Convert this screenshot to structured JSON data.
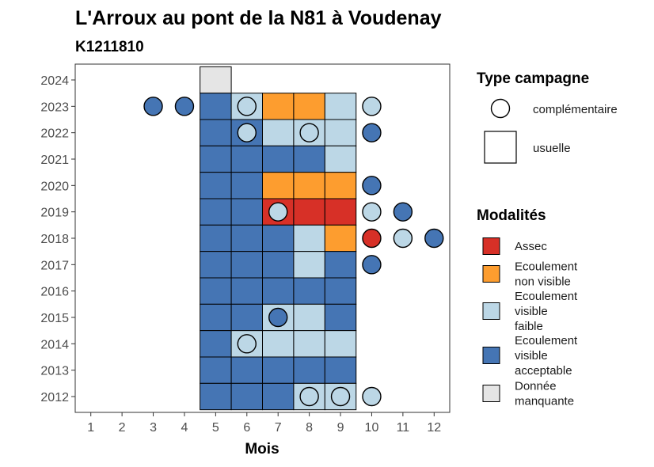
{
  "chart_data": {
    "type": "heatmap",
    "title": "L'Arroux au pont de la N81 à Voudenay",
    "subtitle": "K1211810",
    "xlabel": "Mois",
    "ylabel": "",
    "x_ticks": [
      "1",
      "2",
      "3",
      "4",
      "5",
      "6",
      "7",
      "8",
      "9",
      "10",
      "11",
      "12"
    ],
    "y_ticks": [
      "2012",
      "2013",
      "2014",
      "2015",
      "2016",
      "2017",
      "2018",
      "2019",
      "2020",
      "2021",
      "2022",
      "2023",
      "2024"
    ],
    "xlim": [
      0.5,
      12.5
    ],
    "ylim": [
      2011.4,
      2024.6
    ],
    "grid": false,
    "colors": {
      "Assec": "#d73027",
      "Ecoulement non visible": "#fd9d2f",
      "Ecoulement visible faible": "#bcd7e6",
      "Ecoulement visible acceptable": "#4575b4",
      "Donnée manquante": "#e5e5e5"
    },
    "legend_type": {
      "title": "Type campagne",
      "entries": [
        {
          "label": "complémentaire",
          "shape": "circle"
        },
        {
          "label": "usuelle",
          "shape": "square"
        }
      ]
    },
    "legend_modalite": {
      "title": "Modalités",
      "entries": [
        {
          "key": "Assec",
          "lines": [
            "Assec"
          ]
        },
        {
          "key": "Ecoulement non visible",
          "lines": [
            "Ecoulement",
            "non visible"
          ]
        },
        {
          "key": "Ecoulement visible faible",
          "lines": [
            "Ecoulement",
            "visible",
            "faible"
          ]
        },
        {
          "key": "Ecoulement visible acceptable",
          "lines": [
            "Ecoulement",
            "visible",
            "acceptable"
          ]
        },
        {
          "key": "Donnée manquante",
          "lines": [
            "Donnée",
            "manquante"
          ]
        }
      ]
    },
    "usuelle": [
      {
        "year": 2024,
        "month": 5,
        "m": "Donnée manquante"
      },
      {
        "year": 2023,
        "month": 5,
        "m": "Ecoulement visible acceptable"
      },
      {
        "year": 2023,
        "month": 6,
        "m": "Ecoulement visible faible"
      },
      {
        "year": 2023,
        "month": 7,
        "m": "Ecoulement non visible"
      },
      {
        "year": 2023,
        "month": 8,
        "m": "Ecoulement non visible"
      },
      {
        "year": 2023,
        "month": 9,
        "m": "Ecoulement visible faible"
      },
      {
        "year": 2022,
        "month": 5,
        "m": "Ecoulement visible acceptable"
      },
      {
        "year": 2022,
        "month": 6,
        "m": "Ecoulement visible acceptable"
      },
      {
        "year": 2022,
        "month": 7,
        "m": "Ecoulement visible faible"
      },
      {
        "year": 2022,
        "month": 8,
        "m": "Ecoulement visible faible"
      },
      {
        "year": 2022,
        "month": 9,
        "m": "Ecoulement visible faible"
      },
      {
        "year": 2021,
        "month": 5,
        "m": "Ecoulement visible acceptable"
      },
      {
        "year": 2021,
        "month": 6,
        "m": "Ecoulement visible acceptable"
      },
      {
        "year": 2021,
        "month": 7,
        "m": "Ecoulement visible acceptable"
      },
      {
        "year": 2021,
        "month": 8,
        "m": "Ecoulement visible acceptable"
      },
      {
        "year": 2021,
        "month": 9,
        "m": "Ecoulement visible faible"
      },
      {
        "year": 2020,
        "month": 5,
        "m": "Ecoulement visible acceptable"
      },
      {
        "year": 2020,
        "month": 6,
        "m": "Ecoulement visible acceptable"
      },
      {
        "year": 2020,
        "month": 7,
        "m": "Ecoulement non visible"
      },
      {
        "year": 2020,
        "month": 8,
        "m": "Ecoulement non visible"
      },
      {
        "year": 2020,
        "month": 9,
        "m": "Ecoulement non visible"
      },
      {
        "year": 2019,
        "month": 5,
        "m": "Ecoulement visible acceptable"
      },
      {
        "year": 2019,
        "month": 6,
        "m": "Ecoulement visible acceptable"
      },
      {
        "year": 2019,
        "month": 7,
        "m": "Assec"
      },
      {
        "year": 2019,
        "month": 8,
        "m": "Assec"
      },
      {
        "year": 2019,
        "month": 9,
        "m": "Assec"
      },
      {
        "year": 2018,
        "month": 5,
        "m": "Ecoulement visible acceptable"
      },
      {
        "year": 2018,
        "month": 6,
        "m": "Ecoulement visible acceptable"
      },
      {
        "year": 2018,
        "month": 7,
        "m": "Ecoulement visible acceptable"
      },
      {
        "year": 2018,
        "month": 8,
        "m": "Ecoulement visible faible"
      },
      {
        "year": 2018,
        "month": 9,
        "m": "Ecoulement non visible"
      },
      {
        "year": 2017,
        "month": 5,
        "m": "Ecoulement visible acceptable"
      },
      {
        "year": 2017,
        "month": 6,
        "m": "Ecoulement visible acceptable"
      },
      {
        "year": 2017,
        "month": 7,
        "m": "Ecoulement visible acceptable"
      },
      {
        "year": 2017,
        "month": 8,
        "m": "Ecoulement visible faible"
      },
      {
        "year": 2017,
        "month": 9,
        "m": "Ecoulement visible acceptable"
      },
      {
        "year": 2016,
        "month": 5,
        "m": "Ecoulement visible acceptable"
      },
      {
        "year": 2016,
        "month": 6,
        "m": "Ecoulement visible acceptable"
      },
      {
        "year": 2016,
        "month": 7,
        "m": "Ecoulement visible acceptable"
      },
      {
        "year": 2016,
        "month": 8,
        "m": "Ecoulement visible acceptable"
      },
      {
        "year": 2016,
        "month": 9,
        "m": "Ecoulement visible acceptable"
      },
      {
        "year": 2015,
        "month": 5,
        "m": "Ecoulement visible acceptable"
      },
      {
        "year": 2015,
        "month": 6,
        "m": "Ecoulement visible acceptable"
      },
      {
        "year": 2015,
        "month": 7,
        "m": "Ecoulement visible faible"
      },
      {
        "year": 2015,
        "month": 8,
        "m": "Ecoulement visible faible"
      },
      {
        "year": 2015,
        "month": 9,
        "m": "Ecoulement visible acceptable"
      },
      {
        "year": 2014,
        "month": 5,
        "m": "Ecoulement visible acceptable"
      },
      {
        "year": 2014,
        "month": 6,
        "m": "Ecoulement visible faible"
      },
      {
        "year": 2014,
        "month": 7,
        "m": "Ecoulement visible faible"
      },
      {
        "year": 2014,
        "month": 8,
        "m": "Ecoulement visible faible"
      },
      {
        "year": 2014,
        "month": 9,
        "m": "Ecoulement visible faible"
      },
      {
        "year": 2013,
        "month": 5,
        "m": "Ecoulement visible acceptable"
      },
      {
        "year": 2013,
        "month": 6,
        "m": "Ecoulement visible acceptable"
      },
      {
        "year": 2013,
        "month": 7,
        "m": "Ecoulement visible acceptable"
      },
      {
        "year": 2013,
        "month": 8,
        "m": "Ecoulement visible acceptable"
      },
      {
        "year": 2013,
        "month": 9,
        "m": "Ecoulement visible acceptable"
      },
      {
        "year": 2012,
        "month": 5,
        "m": "Ecoulement visible acceptable"
      },
      {
        "year": 2012,
        "month": 6,
        "m": "Ecoulement visible acceptable"
      },
      {
        "year": 2012,
        "month": 7,
        "m": "Ecoulement visible acceptable"
      },
      {
        "year": 2012,
        "month": 8,
        "m": "Ecoulement visible faible"
      },
      {
        "year": 2012,
        "month": 9,
        "m": "Ecoulement visible faible"
      }
    ],
    "complementaire": [
      {
        "year": 2023,
        "month": 3,
        "m": "Ecoulement visible acceptable"
      },
      {
        "year": 2023,
        "month": 4,
        "m": "Ecoulement visible acceptable"
      },
      {
        "year": 2023,
        "month": 6,
        "m": "Ecoulement visible faible"
      },
      {
        "year": 2023,
        "month": 10,
        "m": "Ecoulement visible faible"
      },
      {
        "year": 2022,
        "month": 6,
        "m": "Ecoulement visible faible"
      },
      {
        "year": 2022,
        "month": 8,
        "m": "Ecoulement visible faible"
      },
      {
        "year": 2022,
        "month": 10,
        "m": "Ecoulement visible acceptable"
      },
      {
        "year": 2020,
        "month": 10,
        "m": "Ecoulement visible acceptable"
      },
      {
        "year": 2019,
        "month": 7,
        "m": "Ecoulement visible faible"
      },
      {
        "year": 2019,
        "month": 10,
        "m": "Ecoulement visible faible"
      },
      {
        "year": 2019,
        "month": 11,
        "m": "Ecoulement visible acceptable"
      },
      {
        "year": 2018,
        "month": 10,
        "m": "Assec"
      },
      {
        "year": 2018,
        "month": 11,
        "m": "Ecoulement visible faible"
      },
      {
        "year": 2018,
        "month": 12,
        "m": "Ecoulement visible acceptable"
      },
      {
        "year": 2017,
        "month": 10,
        "m": "Ecoulement visible acceptable"
      },
      {
        "year": 2015,
        "month": 7,
        "m": "Ecoulement visible acceptable"
      },
      {
        "year": 2014,
        "month": 6,
        "m": "Ecoulement visible faible"
      },
      {
        "year": 2012,
        "month": 8,
        "m": "Ecoulement visible faible"
      },
      {
        "year": 2012,
        "month": 9,
        "m": "Ecoulement visible faible"
      },
      {
        "year": 2012,
        "month": 10,
        "m": "Ecoulement visible faible"
      }
    ]
  }
}
